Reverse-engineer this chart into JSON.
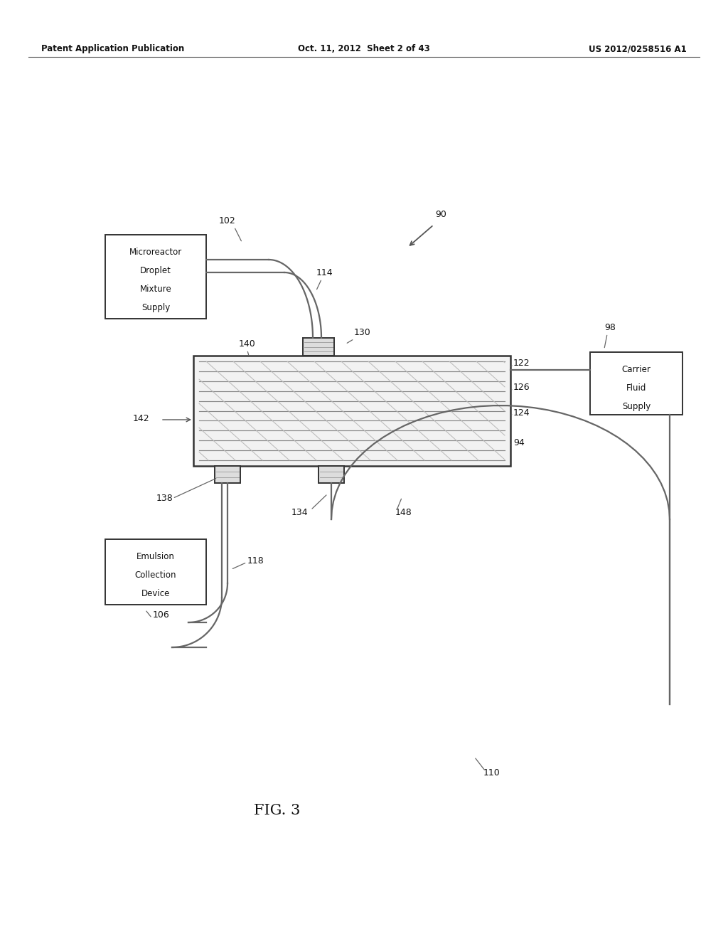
{
  "bg_color": "#ffffff",
  "title_left": "Patent Application Publication",
  "title_center": "Oct. 11, 2012  Sheet 2 of 43",
  "title_right": "US 2012/0258516 A1",
  "fig_label": "FIG. 3",
  "line_color": "#666666",
  "dark_color": "#333333",
  "box1_lines": [
    "Microreactor",
    "Droplet",
    "Mixture",
    "Supply"
  ],
  "box2_lines": [
    "Carrier",
    "Fluid",
    "Supply"
  ],
  "box3_lines": [
    "Emulsion",
    "Collection",
    "Device"
  ]
}
